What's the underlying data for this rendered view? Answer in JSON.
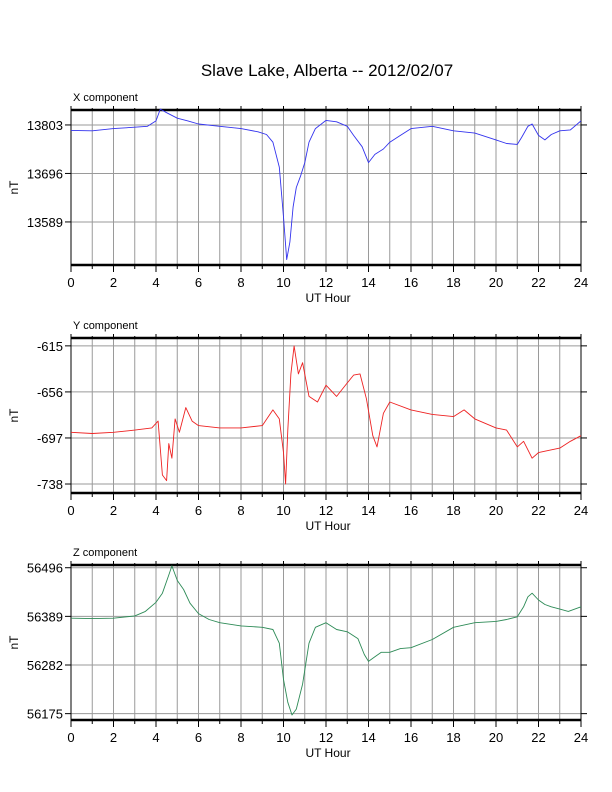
{
  "title": "Slave Lake, Alberta -- 2012/02/07",
  "chart_data": [
    {
      "type": "line",
      "title": "X component",
      "xlabel": "UT Hour",
      "ylabel": "nT",
      "xlim": [
        0,
        24
      ],
      "ylim": [
        13494,
        13836
      ],
      "x_ticks": [
        0,
        2,
        4,
        6,
        8,
        10,
        12,
        14,
        16,
        18,
        20,
        22,
        24
      ],
      "y_ticks": [
        13803,
        13696,
        13589
      ],
      "grid": true,
      "color": "#3333ee",
      "series": [
        {
          "x": [
            0,
            1,
            2,
            3,
            3.6,
            4,
            4.2,
            4.5,
            5,
            5.5,
            6,
            7,
            8,
            8.8,
            9.2,
            9.5,
            9.8,
            10,
            10.15,
            10.3,
            10.45,
            10.6,
            10.8,
            11,
            11.2,
            11.5,
            12,
            12.5,
            13,
            13.3,
            13.7,
            14,
            14.3,
            14.7,
            15,
            15.5,
            16,
            17,
            18,
            19,
            20,
            20.5,
            21,
            21.2,
            21.5,
            21.7,
            22,
            22.3,
            22.6,
            23,
            23.5,
            24
          ],
          "y": [
            13791,
            13790,
            13795,
            13798,
            13800,
            13812,
            13838,
            13830,
            13818,
            13812,
            13805,
            13800,
            13795,
            13788,
            13782,
            13765,
            13710,
            13600,
            13506,
            13545,
            13622,
            13665,
            13690,
            13720,
            13765,
            13795,
            13813,
            13810,
            13800,
            13780,
            13755,
            13720,
            13738,
            13750,
            13765,
            13780,
            13795,
            13800,
            13790,
            13785,
            13770,
            13762,
            13760,
            13775,
            13800,
            13805,
            13780,
            13770,
            13782,
            13790,
            13792,
            13812
          ]
        }
      ]
    },
    {
      "type": "line",
      "title": "Y component",
      "xlabel": "UT Hour",
      "ylabel": "nT",
      "xlim": [
        0,
        24
      ],
      "ylim": [
        -746,
        -608
      ],
      "x_ticks": [
        0,
        2,
        4,
        6,
        8,
        10,
        12,
        14,
        16,
        18,
        20,
        22,
        24
      ],
      "y_ticks": [
        -615,
        -656,
        -697,
        -738
      ],
      "grid": true,
      "color": "#ee2222",
      "series": [
        {
          "x": [
            0,
            1,
            2,
            3,
            3.8,
            4.1,
            4.3,
            4.5,
            4.6,
            4.75,
            4.9,
            5.1,
            5.4,
            5.7,
            6,
            7,
            8,
            9,
            9.5,
            9.8,
            10,
            10.1,
            10.2,
            10.35,
            10.5,
            10.7,
            10.9,
            11.2,
            11.6,
            12,
            12.5,
            13,
            13.3,
            13.6,
            13.9,
            14.2,
            14.4,
            14.7,
            15,
            16,
            17,
            18,
            18.5,
            19,
            20,
            20.5,
            21,
            21.3,
            21.7,
            22,
            22.5,
            23,
            23.5,
            24
          ],
          "y": [
            -692,
            -693,
            -692,
            -690,
            -688,
            -682,
            -730,
            -735,
            -702,
            -715,
            -680,
            -692,
            -670,
            -682,
            -686,
            -688,
            -688,
            -686,
            -672,
            -680,
            -710,
            -738,
            -690,
            -640,
            -615,
            -640,
            -630,
            -660,
            -665,
            -650,
            -660,
            -648,
            -641,
            -640,
            -662,
            -695,
            -705,
            -675,
            -665,
            -672,
            -676,
            -678,
            -672,
            -680,
            -688,
            -690,
            -705,
            -700,
            -715,
            -710,
            -708,
            -706,
            -700,
            -695
          ]
        }
      ]
    },
    {
      "type": "line",
      "title": "Z component",
      "xlabel": "UT Hour",
      "ylabel": "nT",
      "xlim": [
        0,
        24
      ],
      "ylim": [
        56161,
        56502
      ],
      "x_ticks": [
        0,
        2,
        4,
        6,
        8,
        10,
        12,
        14,
        16,
        18,
        20,
        22,
        24
      ],
      "y_ticks": [
        56496,
        56389,
        56282,
        56175
      ],
      "grid": true,
      "color": "#2e8b57",
      "series": [
        {
          "x": [
            0,
            1,
            2,
            3,
            3.5,
            4,
            4.3,
            4.6,
            4.75,
            5,
            5.3,
            5.6,
            6,
            6.5,
            7,
            8,
            9,
            9.5,
            9.8,
            10,
            10.2,
            10.4,
            10.6,
            10.9,
            11.2,
            11.5,
            12,
            12.5,
            13,
            13.5,
            13.8,
            14,
            14.3,
            14.6,
            15,
            15.5,
            16,
            17,
            18,
            19,
            20,
            20.5,
            21,
            21.3,
            21.5,
            21.7,
            22,
            22.3,
            22.6,
            23,
            23.4,
            24
          ],
          "y": [
            56385,
            56384,
            56385,
            56390,
            56400,
            56420,
            56440,
            56480,
            56500,
            56468,
            56448,
            56418,
            56395,
            56382,
            56375,
            56368,
            56365,
            56360,
            56330,
            56250,
            56200,
            56172,
            56185,
            56240,
            56330,
            56365,
            56375,
            56360,
            56355,
            56340,
            56305,
            56290,
            56300,
            56310,
            56310,
            56318,
            56320,
            56338,
            56365,
            56375,
            56378,
            56382,
            56388,
            56410,
            56432,
            56440,
            56425,
            56415,
            56410,
            56405,
            56400,
            56410
          ]
        }
      ]
    }
  ]
}
